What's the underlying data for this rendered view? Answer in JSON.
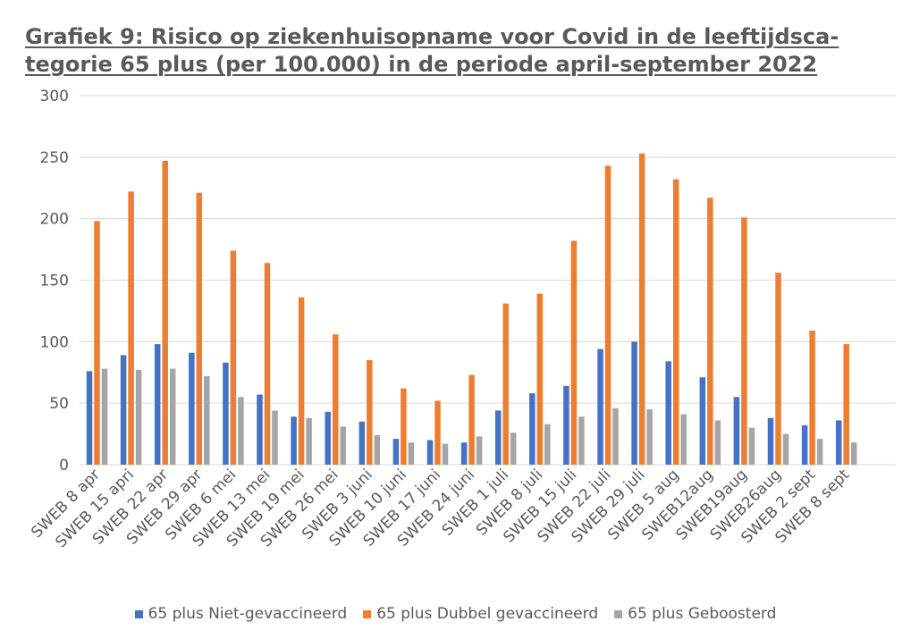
{
  "chart_data": {
    "type": "bar",
    "title": "Grafiek 9: Risico op ziekenhuisopname voor Covid in de leeftijdsca-tegorie 65 plus (per 100.000) in de periode april-september 2022",
    "title_lines": [
      "Grafiek 9: Risico op ziekenhuisopname voor Covid in de leeftijdsca-",
      "tegorie 65 plus (per 100.000) in de periode april-september 2022"
    ],
    "xlabel": "",
    "ylabel": "",
    "ylim": [
      0,
      300
    ],
    "yticks": [
      0,
      50,
      100,
      150,
      200,
      250,
      300
    ],
    "grid": true,
    "legend_position": "bottom",
    "categories": [
      "SWEB 8 apr",
      "SWEB 15 apri",
      "SWEB 22 apr",
      "SWEB 29 apr",
      "SWEB 6 mei",
      "SWEB 13 mei",
      "SWEB 19 mei",
      "SWEB 26 mei",
      "SWEB 3 juni",
      "SWEB 10 juni",
      "SWEB 17 juni",
      "SWEB 24 juni",
      "SWEB 1 juli",
      "SWEB 8 juli",
      "SWEB 15 juli",
      "SWEB 22 juli",
      "SWEB 29 juli",
      "SWEB 5 aug",
      "SWEB12aug",
      "SWEB19aug",
      "SWEB26aug",
      "SWEB 2 sept",
      "SWEB 8 sept"
    ],
    "series": [
      {
        "name": "65 plus Niet-gevaccineerd",
        "color": "#4472c4",
        "values": [
          76,
          89,
          98,
          91,
          83,
          57,
          39,
          43,
          35,
          21,
          20,
          18,
          44,
          58,
          64,
          94,
          100,
          84,
          71,
          55,
          38,
          32,
          36
        ]
      },
      {
        "name": "65 plus Dubbel gevaccineerd",
        "color": "#ed7d31",
        "values": [
          198,
          222,
          247,
          221,
          174,
          164,
          136,
          106,
          85,
          62,
          52,
          73,
          131,
          139,
          182,
          243,
          253,
          232,
          217,
          201,
          156,
          109,
          98
        ]
      },
      {
        "name": "65 plus Geboosterd",
        "color": "#a5a5a5",
        "values": [
          78,
          77,
          78,
          72,
          55,
          44,
          38,
          31,
          24,
          18,
          17,
          23,
          26,
          33,
          39,
          46,
          45,
          41,
          36,
          30,
          25,
          21,
          18
        ]
      }
    ]
  }
}
